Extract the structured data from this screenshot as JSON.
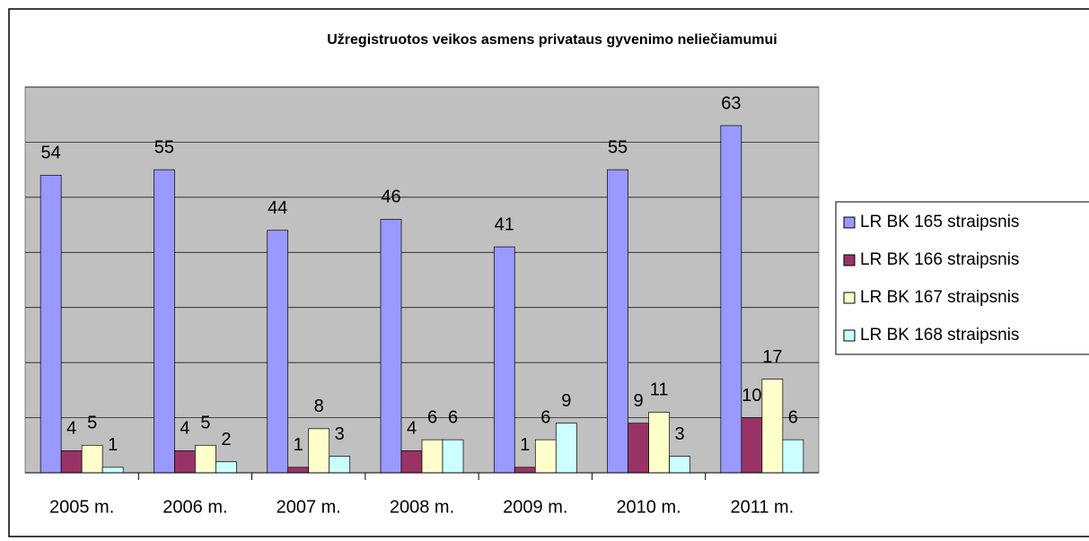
{
  "chart_data": {
    "type": "bar",
    "title": "Užregistruotos veikos asmens privataus gyvenimo neliečiamumui",
    "categories": [
      "2005 m.",
      "2006 m.",
      "2007 m.",
      "2008 m.",
      "2009 m.",
      "2010 m.",
      "2011 m."
    ],
    "series": [
      {
        "name": "LR BK 165 straipsnis",
        "color": "#9999ff",
        "values": [
          54,
          55,
          44,
          46,
          41,
          55,
          63
        ]
      },
      {
        "name": "LR BK 166 straipsnis",
        "color": "#993366",
        "values": [
          4,
          4,
          1,
          4,
          1,
          9,
          10
        ]
      },
      {
        "name": "LR BK 167 straipsnis",
        "color": "#ffffcc",
        "values": [
          5,
          5,
          8,
          6,
          6,
          11,
          17
        ]
      },
      {
        "name": "LR BK 168 straipsnis",
        "color": "#ccffff",
        "values": [
          1,
          2,
          3,
          6,
          9,
          3,
          6
        ]
      }
    ],
    "ylim": [
      0,
      70
    ],
    "yticks": [
      0,
      10,
      20,
      30,
      40,
      50,
      60,
      70
    ],
    "grid": true,
    "legend": "right"
  }
}
